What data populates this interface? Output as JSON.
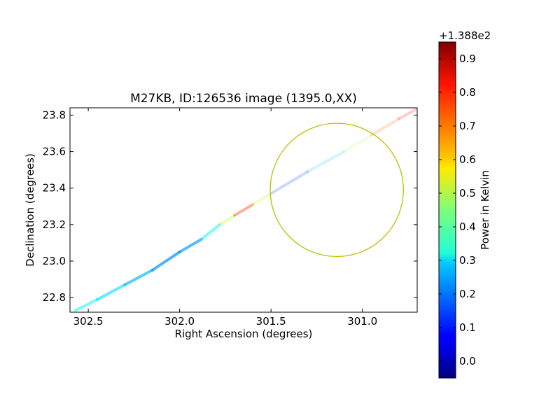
{
  "chart_data": {
    "type": "scatter",
    "title": "M27KB, ID:126536 image (1395.0,XX)",
    "xlabel": "Right Ascension (degrees)",
    "ylabel": "Declination (degrees)",
    "xlim": [
      302.6,
      300.7
    ],
    "ylim": [
      22.72,
      23.84
    ],
    "x_axis_inverted": true,
    "xticks": [
      302.5,
      302.0,
      301.5,
      301.0
    ],
    "xtick_labels": [
      "302.5",
      "302.0",
      "301.5",
      "301.0"
    ],
    "yticks": [
      22.8,
      23.0,
      23.2,
      23.4,
      23.6,
      23.8
    ],
    "ytick_labels": [
      "22.8",
      "23.0",
      "23.2",
      "23.4",
      "23.6",
      "23.8"
    ],
    "grid": false,
    "colormap": "jet",
    "colorbar": {
      "label": "Power in Kelvin",
      "offset_text": "+1.388e2",
      "ticks": [
        0.0,
        0.1,
        0.2,
        0.3,
        0.4,
        0.5,
        0.6,
        0.7,
        0.8,
        0.9
      ],
      "tick_labels": [
        "0.0",
        "0.1",
        "0.2",
        "0.3",
        "0.4",
        "0.5",
        "0.6",
        "0.7",
        "0.8",
        "0.9"
      ],
      "range": [
        -0.05,
        0.95
      ]
    },
    "track": [
      {
        "ra": 302.57,
        "dec": 22.73,
        "power": 0.36,
        "alpha": 0.55
      },
      {
        "ra": 302.45,
        "dec": 22.79,
        "power": 0.32,
        "alpha": 0.6
      },
      {
        "ra": 302.3,
        "dec": 22.87,
        "power": 0.27,
        "alpha": 0.65
      },
      {
        "ra": 302.15,
        "dec": 22.95,
        "power": 0.24,
        "alpha": 0.7
      },
      {
        "ra": 302.0,
        "dec": 23.05,
        "power": 0.2,
        "alpha": 0.7
      },
      {
        "ra": 301.88,
        "dec": 23.12,
        "power": 0.24,
        "alpha": 0.6
      },
      {
        "ra": 301.78,
        "dec": 23.2,
        "power": 0.4,
        "alpha": 0.45
      },
      {
        "ra": 301.7,
        "dec": 23.25,
        "power": 0.65,
        "alpha": 0.4
      },
      {
        "ra": 301.6,
        "dec": 23.31,
        "power": 0.9,
        "alpha": 0.4
      },
      {
        "ra": 301.5,
        "dec": 23.37,
        "power": 0.15,
        "alpha": 0.2
      },
      {
        "ra": 301.3,
        "dec": 23.49,
        "power": 0.12,
        "alpha": 0.2
      },
      {
        "ra": 301.1,
        "dec": 23.6,
        "power": 0.4,
        "alpha": 0.15
      },
      {
        "ra": 300.95,
        "dec": 23.69,
        "power": 0.58,
        "alpha": 0.2
      },
      {
        "ra": 300.8,
        "dec": 23.78,
        "power": 0.85,
        "alpha": 0.2
      },
      {
        "ra": 300.71,
        "dec": 23.83,
        "power": 0.8,
        "alpha": 0.2
      }
    ],
    "circle": {
      "center_ra": 301.14,
      "center_dec": 23.39,
      "radius_dec": 0.365,
      "color": "#bfbf00"
    }
  }
}
